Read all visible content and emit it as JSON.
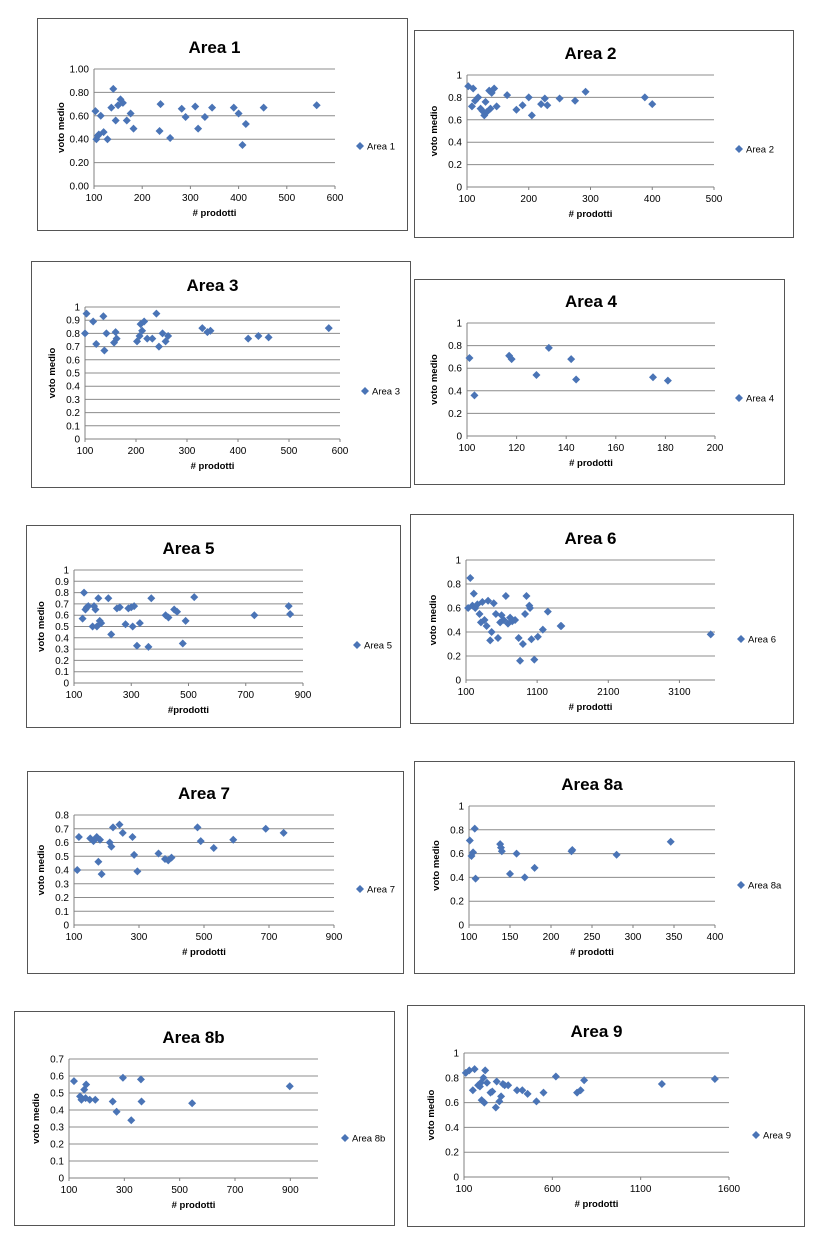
{
  "chart_data": [
    {
      "type": "scatter",
      "title": "Area 1",
      "xlabel": "# prodotti",
      "ylabel": "voto medio",
      "xlim": [
        100,
        600
      ],
      "ylim": [
        0,
        1
      ],
      "xticks": [
        "100",
        "200",
        "300",
        "400",
        "500",
        "600"
      ],
      "yticks": [
        "0.00",
        "0.20",
        "0.40",
        "0.60",
        "0.80",
        "1.00"
      ],
      "legend": "right",
      "marker_color": "#4a74b6",
      "series": [
        {
          "name": "Area 1",
          "x": [
            103,
            105,
            108,
            110,
            114,
            120,
            128,
            136,
            140,
            145,
            150,
            155,
            160,
            168,
            176,
            182,
            236,
            238,
            258,
            282,
            290,
            310,
            316,
            330,
            345,
            390,
            400,
            408,
            415,
            452,
            562
          ],
          "y": [
            0.64,
            0.4,
            0.43,
            0.44,
            0.6,
            0.46,
            0.4,
            0.67,
            0.83,
            0.56,
            0.69,
            0.74,
            0.71,
            0.56,
            0.62,
            0.49,
            0.47,
            0.7,
            0.41,
            0.66,
            0.59,
            0.68,
            0.49,
            0.59,
            0.67,
            0.67,
            0.62,
            0.35,
            0.53,
            0.67,
            0.69
          ]
        }
      ]
    },
    {
      "type": "scatter",
      "title": "Area 2",
      "xlabel": "# prodotti",
      "ylabel": "voto medio",
      "xlim": [
        100,
        500
      ],
      "ylim": [
        0,
        1
      ],
      "xticks": [
        "100",
        "200",
        "300",
        "400",
        "500"
      ],
      "yticks": [
        "0",
        "0.2",
        "0.4",
        "0.6",
        "0.8",
        "1"
      ],
      "legend": "right",
      "marker_color": "#4a74b6",
      "series": [
        {
          "name": "Area 2",
          "x": [
            102,
            108,
            110,
            113,
            118,
            122,
            125,
            128,
            130,
            132,
            136,
            138,
            140,
            144,
            148,
            165,
            180,
            190,
            200,
            205,
            220,
            226,
            230,
            250,
            275,
            292,
            388,
            400
          ],
          "y": [
            0.9,
            0.72,
            0.88,
            0.77,
            0.8,
            0.7,
            0.68,
            0.64,
            0.76,
            0.67,
            0.86,
            0.7,
            0.84,
            0.88,
            0.72,
            0.82,
            0.69,
            0.73,
            0.8,
            0.64,
            0.74,
            0.79,
            0.73,
            0.79,
            0.77,
            0.85,
            0.8,
            0.74
          ]
        }
      ]
    },
    {
      "type": "scatter",
      "title": "Area 3",
      "xlabel": "# prodotti",
      "ylabel": "voto medio",
      "xlim": [
        100,
        600
      ],
      "ylim": [
        0,
        1
      ],
      "xticks": [
        "100",
        "200",
        "300",
        "400",
        "500",
        "600"
      ],
      "yticks": [
        "0",
        "0.1",
        "0.2",
        "0.3",
        "0.4",
        "0.5",
        "0.6",
        "0.7",
        "0.8",
        "0.9",
        "1"
      ],
      "legend": "right",
      "marker_color": "#4a74b6",
      "series": [
        {
          "name": "Area 3",
          "x": [
            100,
            103,
            116,
            122,
            136,
            138,
            142,
            157,
            160,
            162,
            202,
            207,
            209,
            212,
            216,
            222,
            232,
            240,
            245,
            252,
            258,
            263,
            330,
            340,
            346,
            420,
            440,
            460,
            578
          ],
          "y": [
            0.8,
            0.95,
            0.89,
            0.72,
            0.93,
            0.67,
            0.8,
            0.73,
            0.81,
            0.76,
            0.74,
            0.78,
            0.87,
            0.82,
            0.89,
            0.76,
            0.76,
            0.95,
            0.7,
            0.8,
            0.74,
            0.78,
            0.84,
            0.81,
            0.82,
            0.76,
            0.78,
            0.77,
            0.84
          ]
        }
      ]
    },
    {
      "type": "scatter",
      "title": "Area 4",
      "xlabel": "# prodotti",
      "ylabel": "voto medio",
      "xlim": [
        100,
        200
      ],
      "ylim": [
        0,
        1
      ],
      "xticks": [
        "100",
        "120",
        "140",
        "160",
        "180",
        "200"
      ],
      "yticks": [
        "0",
        "0.2",
        "0.4",
        "0.6",
        "0.8",
        "1"
      ],
      "legend": "right",
      "marker_color": "#4a74b6",
      "series": [
        {
          "name": "Area 4",
          "x": [
            101,
            103,
            117,
            118,
            128,
            133,
            142,
            144,
            175,
            181
          ],
          "y": [
            0.69,
            0.36,
            0.71,
            0.68,
            0.54,
            0.78,
            0.68,
            0.5,
            0.52,
            0.49
          ]
        }
      ]
    },
    {
      "type": "scatter",
      "title": "Area 5",
      "xlabel": "#prodotti",
      "ylabel": "voto medio",
      "xlim": [
        100,
        900
      ],
      "ylim": [
        0,
        1
      ],
      "xticks": [
        "100",
        "300",
        "500",
        "700",
        "900"
      ],
      "yticks": [
        "0",
        "0.1",
        "0.2",
        "0.3",
        "0.4",
        "0.5",
        "0.6",
        "0.7",
        "0.8",
        "0.9",
        "1"
      ],
      "legend": "right",
      "marker_color": "#4a74b6",
      "series": [
        {
          "name": "Area 5",
          "x": [
            130,
            135,
            140,
            145,
            150,
            165,
            170,
            175,
            180,
            185,
            190,
            195,
            220,
            230,
            250,
            260,
            280,
            290,
            300,
            305,
            310,
            320,
            330,
            360,
            370,
            420,
            430,
            450,
            460,
            480,
            490,
            520,
            730,
            850,
            855
          ],
          "y": [
            0.57,
            0.8,
            0.65,
            0.67,
            0.68,
            0.5,
            0.68,
            0.65,
            0.5,
            0.75,
            0.55,
            0.53,
            0.75,
            0.43,
            0.66,
            0.67,
            0.52,
            0.66,
            0.67,
            0.5,
            0.68,
            0.33,
            0.53,
            0.32,
            0.75,
            0.6,
            0.58,
            0.65,
            0.63,
            0.35,
            0.55,
            0.76,
            0.6,
            0.68,
            0.61
          ]
        }
      ]
    },
    {
      "type": "scatter",
      "title": "Area 6",
      "xlabel": "# prodotti",
      "ylabel": "voto medio",
      "xlim": [
        100,
        3600
      ],
      "ylim": [
        0,
        1
      ],
      "xticks": [
        "100",
        "1100",
        "2100",
        "3100"
      ],
      "yticks": [
        "0",
        "0.2",
        "0.4",
        "0.6",
        "0.8",
        "1"
      ],
      "legend": "right",
      "marker_color": "#4a74b6",
      "series": [
        {
          "name": "Area 6",
          "x": [
            130,
            160,
            190,
            210,
            230,
            260,
            290,
            310,
            330,
            360,
            390,
            410,
            440,
            460,
            490,
            520,
            550,
            580,
            600,
            630,
            660,
            690,
            720,
            750,
            790,
            840,
            860,
            900,
            930,
            950,
            990,
            1000,
            1020,
            1060,
            1110,
            1180,
            1250,
            1430,
            1440,
            3540
          ],
          "y": [
            0.6,
            0.85,
            0.62,
            0.72,
            0.6,
            0.63,
            0.55,
            0.48,
            0.65,
            0.5,
            0.45,
            0.66,
            0.33,
            0.4,
            0.64,
            0.55,
            0.35,
            0.48,
            0.54,
            0.5,
            0.7,
            0.47,
            0.52,
            0.49,
            0.5,
            0.35,
            0.16,
            0.3,
            0.55,
            0.7,
            0.62,
            0.6,
            0.34,
            0.17,
            0.36,
            0.42,
            0.57,
            0.45,
            0.45,
            0.38
          ]
        }
      ]
    },
    {
      "type": "scatter",
      "title": "Area 7",
      "xlabel": "# prodotti",
      "ylabel": "voto medio",
      "xlim": [
        100,
        900
      ],
      "ylim": [
        0,
        0.8
      ],
      "xticks": [
        "100",
        "300",
        "500",
        "700",
        "900"
      ],
      "yticks": [
        "0",
        "0.1",
        "0.2",
        "0.3",
        "0.4",
        "0.5",
        "0.6",
        "0.7",
        "0.8"
      ],
      "legend": "right",
      "marker_color": "#4a74b6",
      "series": [
        {
          "name": "Area 7",
          "x": [
            110,
            115,
            150,
            160,
            170,
            175,
            180,
            185,
            210,
            215,
            220,
            240,
            250,
            280,
            285,
            295,
            360,
            380,
            390,
            400,
            480,
            490,
            530,
            590,
            690,
            745
          ],
          "y": [
            0.4,
            0.64,
            0.63,
            0.61,
            0.64,
            0.46,
            0.62,
            0.37,
            0.6,
            0.57,
            0.71,
            0.73,
            0.67,
            0.64,
            0.51,
            0.39,
            0.52,
            0.48,
            0.47,
            0.49,
            0.71,
            0.61,
            0.56,
            0.62,
            0.7,
            0.67
          ]
        }
      ]
    },
    {
      "type": "scatter",
      "title": "Area 8a",
      "xlabel": "# prodotti",
      "ylabel": "voto medio",
      "xlim": [
        100,
        400
      ],
      "ylim": [
        0,
        1
      ],
      "xticks": [
        "100",
        "150",
        "200",
        "250",
        "300",
        "350",
        "400"
      ],
      "yticks": [
        "0",
        "0.2",
        "0.4",
        "0.6",
        "0.8",
        "1"
      ],
      "legend": "right",
      "marker_color": "#4a74b6",
      "series": [
        {
          "name": "Area 8a",
          "x": [
            101,
            103,
            105,
            107,
            108,
            138,
            139,
            140,
            150,
            158,
            168,
            180,
            225,
            226,
            280,
            346
          ],
          "y": [
            0.71,
            0.58,
            0.61,
            0.81,
            0.39,
            0.68,
            0.65,
            0.62,
            0.43,
            0.6,
            0.4,
            0.48,
            0.62,
            0.63,
            0.59,
            0.7
          ]
        }
      ]
    },
    {
      "type": "scatter",
      "title": "Area 8b",
      "xlabel": "# prodotti",
      "ylabel": "voto medio",
      "xlim": [
        100,
        1000
      ],
      "ylim": [
        0,
        0.7
      ],
      "xticks": [
        "100",
        "300",
        "500",
        "700",
        "900"
      ],
      "yticks": [
        "0",
        "0.1",
        "0.2",
        "0.3",
        "0.4",
        "0.5",
        "0.6",
        "0.7"
      ],
      "legend": "right",
      "marker_color": "#4a74b6",
      "series": [
        {
          "name": "Area 8b",
          "x": [
            118,
            140,
            145,
            155,
            160,
            162,
            175,
            195,
            258,
            272,
            295,
            325,
            360,
            362,
            545,
            898
          ],
          "y": [
            0.57,
            0.48,
            0.46,
            0.52,
            0.47,
            0.55,
            0.46,
            0.46,
            0.45,
            0.39,
            0.59,
            0.34,
            0.58,
            0.45,
            0.44,
            0.54
          ]
        }
      ]
    },
    {
      "type": "scatter",
      "title": "Area 9",
      "xlabel": "# prodotti",
      "ylabel": "voto medio",
      "xlim": [
        100,
        1600
      ],
      "ylim": [
        0,
        1
      ],
      "xticks": [
        "100",
        "600",
        "1100",
        "1600"
      ],
      "yticks": [
        "0",
        "0.2",
        "0.4",
        "0.6",
        "0.8",
        "1"
      ],
      "legend": "right",
      "marker_color": "#4a74b6",
      "series": [
        {
          "name": "Area 9",
          "x": [
            110,
            130,
            150,
            160,
            180,
            190,
            195,
            200,
            210,
            215,
            220,
            230,
            250,
            260,
            280,
            285,
            300,
            310,
            320,
            330,
            350,
            400,
            430,
            460,
            510,
            550,
            620,
            740,
            760,
            780,
            1220,
            1520
          ],
          "y": [
            0.84,
            0.86,
            0.7,
            0.87,
            0.74,
            0.73,
            0.76,
            0.62,
            0.8,
            0.6,
            0.86,
            0.76,
            0.68,
            0.69,
            0.56,
            0.77,
            0.61,
            0.65,
            0.75,
            0.74,
            0.74,
            0.7,
            0.7,
            0.67,
            0.61,
            0.68,
            0.81,
            0.68,
            0.7,
            0.78,
            0.75,
            0.79
          ]
        }
      ]
    }
  ]
}
